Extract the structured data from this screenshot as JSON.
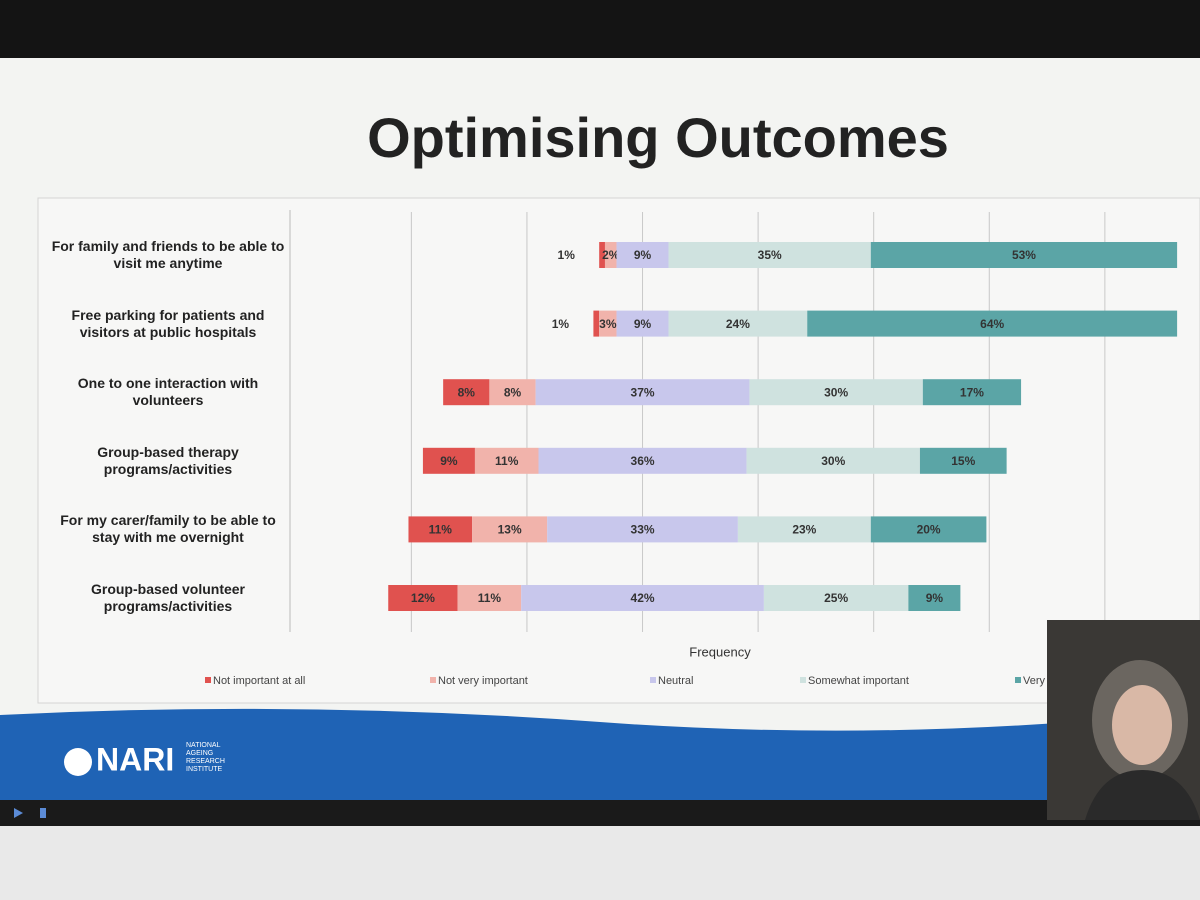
{
  "chart_data": {
    "type": "diverging_bar",
    "title": "Optimising Outcomes",
    "x_label": "Frequency",
    "categories": [
      "For family and friends to be able to visit me anytime",
      "Free parking for patients and visitors at public hospitals",
      "One to one interaction with volunteers",
      "Group-based therapy programs/activities",
      "For my carer/family to be able to stay with me overnight",
      "Group-based volunteer programs/activities"
    ],
    "series": [
      {
        "name": "Not important at all",
        "color": "#e0524f",
        "values": [
          1,
          1,
          8,
          9,
          11,
          12
        ],
        "value_labels": [
          "1%",
          "1%",
          "8%",
          "9%",
          "11%",
          "12%"
        ]
      },
      {
        "name": "Not very important",
        "color": "#f1b3ab",
        "values": [
          2,
          3,
          8,
          11,
          13,
          11
        ],
        "value_labels": [
          "2%",
          "3%",
          "8%",
          "11%",
          "13%",
          "11%"
        ]
      },
      {
        "name": "Neutral",
        "color": "#c8c7ec",
        "values": [
          9,
          9,
          37,
          36,
          33,
          42
        ],
        "value_labels": [
          "9%",
          "9%",
          "37%",
          "36%",
          "33%",
          "42%"
        ]
      },
      {
        "name": "Somewhat important",
        "color": "#cfe2df",
        "values": [
          35,
          24,
          30,
          30,
          23,
          25
        ],
        "value_labels": [
          "35%",
          "24%",
          "30%",
          "30%",
          "23%",
          "25%"
        ]
      },
      {
        "name": "Very",
        "color": "#5ba5a6",
        "values": [
          53,
          64,
          17,
          15,
          20,
          9
        ],
        "value_labels": [
          "53%",
          "64%",
          "17%",
          "15%",
          "20%",
          "9%"
        ]
      }
    ],
    "xlim": [
      -61,
      93
    ],
    "xticks": [
      -40,
      -20,
      0,
      20,
      40,
      60,
      80
    ],
    "grid": true
  },
  "logo": {
    "name": "NARI",
    "full_name": "NATIONAL AGEING RESEARCH INSTITUTE"
  }
}
